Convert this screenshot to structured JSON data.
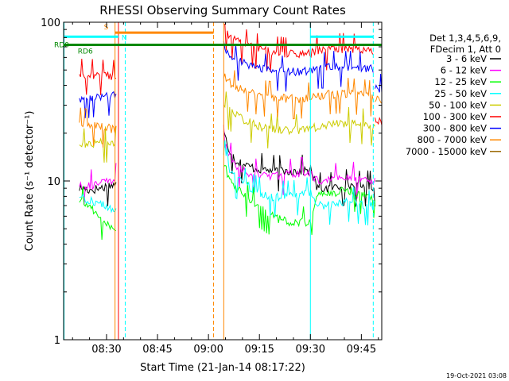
{
  "chart_data": {
    "type": "line",
    "title": "RHESSI Observing Summary Count Rates",
    "xlabel": "Start Time (21-Jan-14 08:17:22)",
    "ylabel": "Count Rate (s⁻¹ detector⁻¹)",
    "y_scale": "log",
    "ylim": [
      1,
      100
    ],
    "xlim_minutes": [
      17.37,
      111
    ],
    "x_ticks": [
      {
        "label": "08:30",
        "minute": 30
      },
      {
        "label": "08:45",
        "minute": 45
      },
      {
        "label": "09:00",
        "minute": 60
      },
      {
        "label": "09:15",
        "minute": 75
      },
      {
        "label": "09:30",
        "minute": 90
      },
      {
        "label": "09:45",
        "minute": 105
      }
    ],
    "y_ticks": [
      {
        "label": "1",
        "value": 1
      },
      {
        "label": "10",
        "value": 10
      },
      {
        "label": "100",
        "value": 100
      }
    ],
    "legend_header": [
      "Det 1,3,4,5,6,9,",
      "FDecim 1, Att 0"
    ],
    "series": [
      {
        "name": "3 - 6 keV",
        "color": "#000000",
        "segments": [
          {
            "x": [
              22,
              25,
              28,
              31,
              32.8
            ],
            "y": [
              9.0,
              8.8,
              9.0,
              9.4,
              9.6
            ]
          },
          {
            "x": [
              64.5,
              66,
              68,
              71,
              74,
              77,
              80,
              84,
              88,
              90,
              92,
              95,
              98,
              101,
              104,
              107,
              109
            ],
            "y": [
              20,
              16,
              13.5,
              12.5,
              12,
              11.8,
              11.5,
              11.6,
              11.6,
              11.8,
              9.0,
              9.0,
              9.2,
              9.5,
              9.2,
              9.3,
              9.2
            ]
          }
        ]
      },
      {
        "name": "6 - 12 keV",
        "color": "#ff00ff",
        "segments": [
          {
            "x": [
              22,
              25,
              28,
              31,
              32.8
            ],
            "y": [
              9.5,
              9.4,
              9.6,
              10.0,
              10.3
            ]
          },
          {
            "x": [
              64.5,
              66,
              68,
              71,
              74,
              77,
              80,
              84,
              88,
              90,
              92,
              95,
              98,
              101,
              104,
              107,
              109
            ],
            "y": [
              18,
              14.5,
              12.5,
              11.3,
              11.0,
              10.8,
              10.8,
              11.0,
              11.2,
              11.4,
              10.0,
              10.2,
              10.4,
              10.6,
              10.4,
              10.2,
              10.2
            ]
          }
        ]
      },
      {
        "name": "12 - 25 keV",
        "color": "#00ff00",
        "segments": [
          {
            "x": [
              22,
              25,
              28,
              31,
              32.8
            ],
            "y": [
              7.5,
              7.0,
              5.8,
              5.2,
              5.0
            ]
          },
          {
            "x": [
              64.5,
              66,
              68,
              71,
              74,
              77,
              80,
              84,
              88,
              90,
              92,
              95,
              98,
              101,
              104,
              107,
              109
            ],
            "y": [
              13,
              10.5,
              9.0,
              8.0,
              7.0,
              6.3,
              5.8,
              5.5,
              5.5,
              5.6,
              8.0,
              8.3,
              8.5,
              8.8,
              8.4,
              8.0,
              7.8
            ]
          }
        ]
      },
      {
        "name": "25 - 50 keV",
        "color": "#00ffff",
        "segments": [
          {
            "x": [
              22,
              25,
              28,
              31,
              32.8
            ],
            "y": [
              8.0,
              7.6,
              7.2,
              6.8,
              6.6
            ]
          },
          {
            "x": [
              64.5,
              66,
              68,
              71,
              74,
              77,
              80,
              84,
              88,
              90,
              92,
              95,
              98,
              101,
              104,
              107,
              109
            ],
            "y": [
              15,
              12,
              10.5,
              9.5,
              8.6,
              8.1,
              7.9,
              8.0,
              8.2,
              8.5,
              7.0,
              7.1,
              7.2,
              7.4,
              7.2,
              7.0,
              7.0
            ]
          }
        ]
      },
      {
        "name": "50 - 100 keV",
        "color": "#cccc00",
        "segments": [
          {
            "x": [
              22,
              25,
              28,
              31,
              32.8
            ],
            "y": [
              17,
              17.2,
              17.4,
              17.5,
              17.7
            ]
          },
          {
            "x": [
              64.5,
              66,
              68,
              71,
              74,
              77,
              80,
              84,
              88,
              90,
              92,
              95,
              98,
              101,
              104,
              107,
              109
            ],
            "y": [
              30,
              28,
              26,
              24,
              22.5,
              21.5,
              21,
              20.8,
              21,
              21.5,
              22,
              22.5,
              23,
              23.3,
              23,
              22.5,
              22
            ]
          }
        ]
      },
      {
        "name": "100 - 300 keV",
        "color": "#ff0000",
        "segments": [
          {
            "x": [
              22,
              25,
              28,
              31,
              32.8
            ],
            "y": [
              47,
              47,
              46.5,
              46,
              46
            ]
          },
          {
            "x": [
              64.5,
              66,
              68,
              71,
              74,
              77,
              80,
              84,
              88,
              90,
              92,
              95,
              98,
              101,
              104,
              107,
              108.5
            ],
            "y": [
              95,
              82,
              76,
              72,
              68,
              66,
              64.5,
              63.5,
              63.5,
              64,
              66,
              67,
              68,
              68,
              67,
              66.5,
              66
            ]
          },
          {
            "x": [
              109,
              110,
              111
            ],
            "y": [
              25,
              24,
              23.5
            ]
          }
        ]
      },
      {
        "name": "300 - 800 keV",
        "color": "#0000ff",
        "segments": [
          {
            "x": [
              22,
              25,
              28,
              31,
              32.8
            ],
            "y": [
              33,
              33.5,
              34,
              34.5,
              35
            ]
          },
          {
            "x": [
              64.5,
              66,
              68,
              71,
              74,
              77,
              80,
              84,
              88,
              90,
              92,
              95,
              98,
              101,
              104,
              107,
              108.5
            ],
            "y": [
              72,
              63,
              58,
              55,
              52,
              50.5,
              49.5,
              49,
              49,
              49.5,
              51,
              52,
              52.5,
              52.5,
              52,
              51.5,
              51
            ]
          },
          {
            "x": [
              109,
              110,
              111
            ],
            "y": [
              39,
              38,
              37.5
            ]
          }
        ]
      },
      {
        "name": "800 - 7000 keV",
        "color": "#ff8800",
        "segments": [
          {
            "x": [
              22,
              25,
              28,
              31,
              32.8
            ],
            "y": [
              23,
              22.5,
              22,
              21.5,
              21
            ]
          },
          {
            "x": [
              64.5,
              66,
              68,
              71,
              74,
              77,
              80,
              84,
              88,
              90,
              92,
              95,
              98,
              101,
              104,
              107,
              108.5
            ],
            "y": [
              47,
              42,
              39,
              37,
              35,
              34,
              33.5,
              33,
              33,
              33.3,
              34,
              35,
              35.5,
              35.5,
              35,
              34.5,
              34
            ]
          },
          {
            "x": [
              109,
              110,
              111
            ],
            "y": [
              33,
              32.5,
              32
            ]
          }
        ]
      },
      {
        "name": "7000 - 15000 keV",
        "color": "#996600",
        "segments": []
      }
    ],
    "markers": {
      "horizontal_bars": [
        {
          "label": "S",
          "color": "#ff8800",
          "x": [
            32.5,
            61.5
          ],
          "y": 86
        },
        {
          "label": "N",
          "color": "#00ffff",
          "x": [
            17.4,
            33.5
          ],
          "y": 81
        },
        {
          "label": "",
          "color": "#00ffff",
          "x": [
            90,
            108.5
          ],
          "y": 81
        },
        {
          "label": "RD0",
          "color": "#008800",
          "x": [
            17.4,
            111
          ],
          "y": 72
        },
        {
          "label": "RD6",
          "color": "#008800",
          "x": [
            22,
            61.5
          ],
          "y": 72
        }
      ],
      "vertical_lines": [
        {
          "minute": 17.5,
          "color": "#00ffff",
          "style": "solid"
        },
        {
          "minute": 32.5,
          "color": "#ff8800",
          "style": "solid"
        },
        {
          "minute": 33.5,
          "color": "#ff0000",
          "style": "solid"
        },
        {
          "minute": 35.5,
          "color": "#00ffff",
          "style": "dashed"
        },
        {
          "minute": 61.5,
          "color": "#ff8800",
          "style": "dashed"
        },
        {
          "minute": 64.5,
          "color": "#ff8800",
          "style": "solid"
        },
        {
          "minute": 90,
          "color": "#00ffff",
          "style": "solid"
        },
        {
          "minute": 108.5,
          "color": "#00ffff",
          "style": "dashed"
        }
      ]
    },
    "footer_timestamp": "19-Oct-2021 03:08"
  }
}
